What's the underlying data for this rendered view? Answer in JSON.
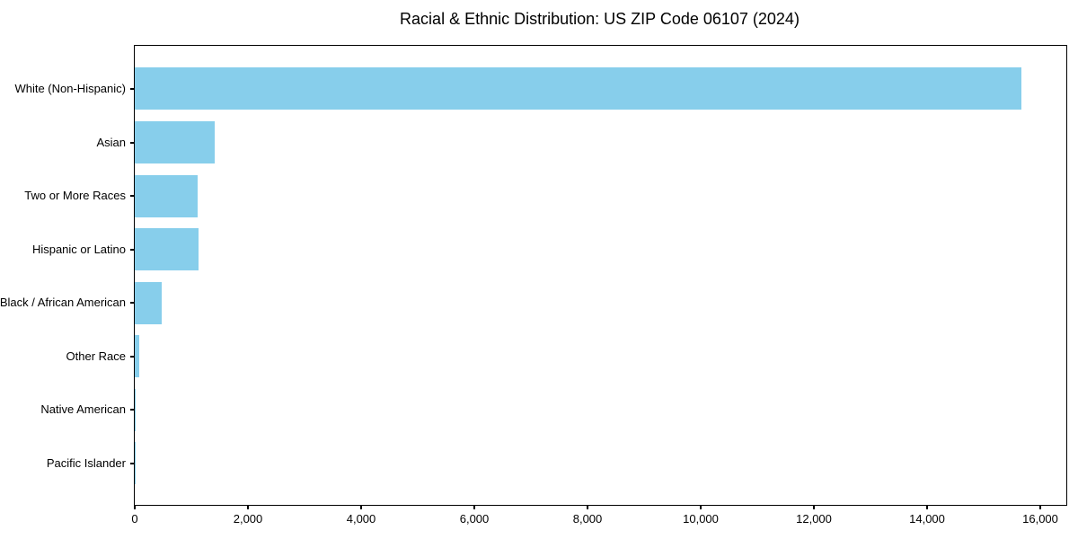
{
  "chart_data": {
    "type": "bar",
    "orientation": "horizontal",
    "title": "Racial & Ethnic Distribution: US ZIP Code 06107 (2024)",
    "categories": [
      "White (Non-Hispanic)",
      "Asian",
      "Two or More Races",
      "Hispanic or Latino",
      "Black / African American",
      "Other Race",
      "Native American",
      "Pacific Islander"
    ],
    "values": [
      15670,
      1415,
      1110,
      1125,
      480,
      75,
      10,
      5
    ],
    "xlabel": "",
    "ylabel": "",
    "xlim": [
      0,
      16460
    ],
    "x_ticks": [
      0,
      2000,
      4000,
      6000,
      8000,
      10000,
      12000,
      14000,
      16000
    ],
    "x_tick_labels": [
      "0",
      "2,000",
      "4,000",
      "6,000",
      "8,000",
      "10,000",
      "12,000",
      "14,000",
      "16,000"
    ],
    "bar_color": "#87CEEB",
    "axis_color": "#000000",
    "background_color": "#FFFFFF",
    "grid": false,
    "legend": null
  }
}
